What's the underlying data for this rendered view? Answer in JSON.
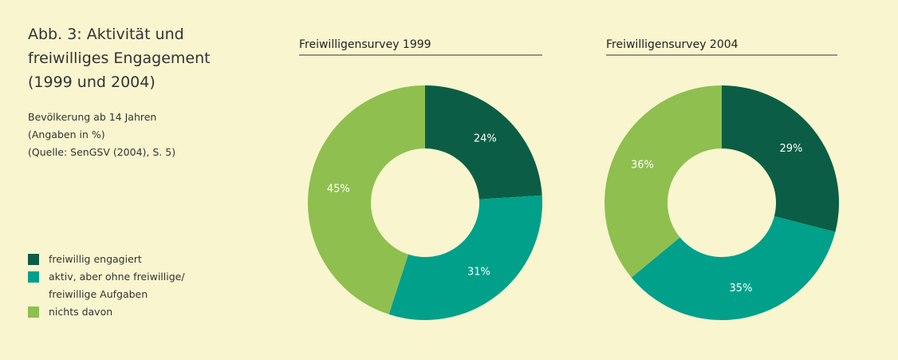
{
  "title": "Abb. 3: Aktivität und freiwilliges Engagement (1999 und 2004)",
  "notes": [
    "Bevölkerung ab 14 Jahren",
    "(Angaben in %)",
    "(Quelle: SenGSV (2004), S. 5)"
  ],
  "chart_data": [
    {
      "type": "pie",
      "title": "Freiwilligensurvey 1999",
      "categories": [
        "freiwillig engagiert",
        "aktiv, aber ohne freiwillige/ freiwillige Aufgaben",
        "nichts davon"
      ],
      "values": [
        24,
        31,
        45
      ],
      "value_labels": [
        "24%",
        "31%",
        "45%"
      ],
      "colors": [
        "#0b5e45",
        "#00a08a",
        "#8fbf4f"
      ]
    },
    {
      "type": "pie",
      "title": "Freiwilligensurvey 2004",
      "categories": [
        "freiwillig engagiert",
        "aktiv, aber ohne freiwillige/ freiwillige Aufgaben",
        "nichts davon"
      ],
      "values": [
        29,
        35,
        36
      ],
      "value_labels": [
        "29%",
        "35%",
        "36%"
      ],
      "colors": [
        "#0b5e45",
        "#00a08a",
        "#8fbf4f"
      ]
    }
  ]
}
